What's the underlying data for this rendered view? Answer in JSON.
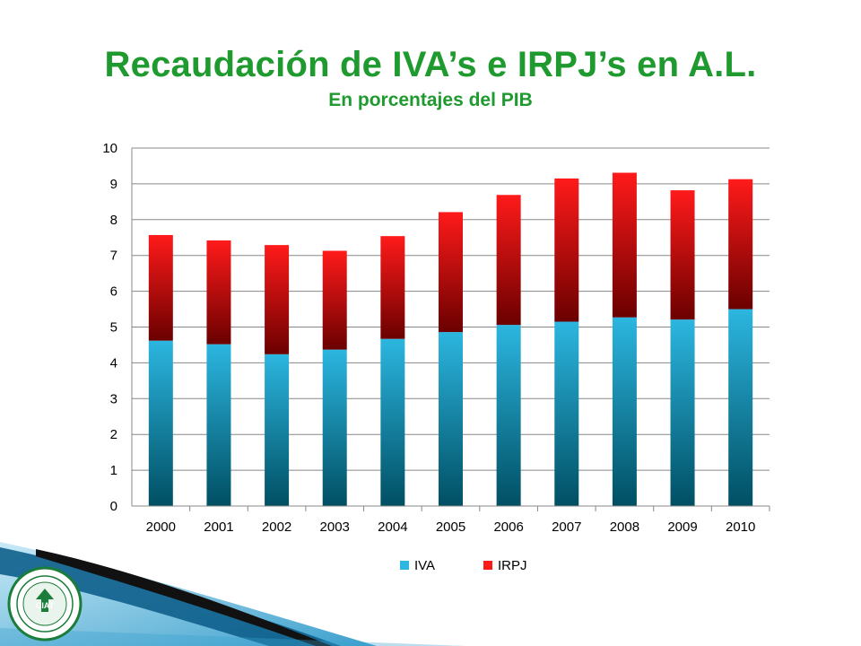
{
  "title": "Recaudación de IVA’s e IRPJ’s en A.L.",
  "subtitle": "En porcentajes del PIB",
  "colors": {
    "title": "#1f9a2f",
    "iva_top": "#2cb6e0",
    "iva_bottom": "#004f63",
    "irpj_top": "#ff1a1a",
    "irpj_bottom": "#6b0000",
    "gridline": "#888888"
  },
  "logo": {
    "icon": "institutional-seal-logo",
    "text": "CIAT"
  },
  "chart_data": {
    "type": "bar",
    "stacked": true,
    "categories": [
      "2000",
      "2001",
      "2002",
      "2003",
      "2004",
      "2005",
      "2006",
      "2007",
      "2008",
      "2009",
      "2010"
    ],
    "series": [
      {
        "name": "IVA",
        "values": [
          4.62,
          4.52,
          4.24,
          4.37,
          4.67,
          4.86,
          5.06,
          5.15,
          5.27,
          5.21,
          5.5
        ]
      },
      {
        "name": "IRPJ",
        "values": [
          2.95,
          2.9,
          3.05,
          2.76,
          2.87,
          3.35,
          3.63,
          4.0,
          4.04,
          3.61,
          3.63
        ]
      }
    ],
    "ylim": [
      0,
      10
    ],
    "yticks": [
      "0",
      "1",
      "2",
      "3",
      "4",
      "5",
      "6",
      "7",
      "8",
      "9",
      "10"
    ],
    "grid": true,
    "legend": "bottom",
    "xlabel": "",
    "ylabel": ""
  }
}
